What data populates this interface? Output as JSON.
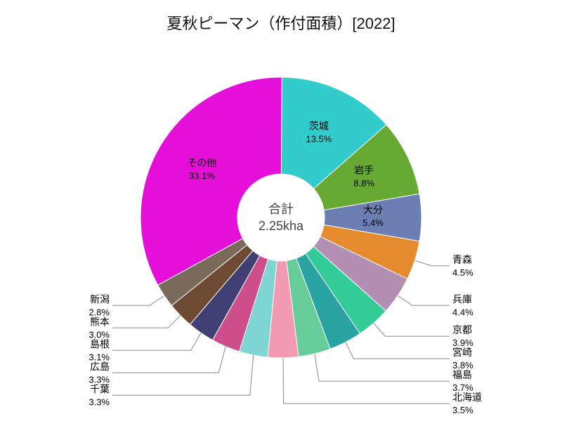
{
  "chart": {
    "type": "pie",
    "title": "夏秋ピーマン（作付面積）[2022]",
    "title_fontsize": 22,
    "center_label": "合計",
    "center_value": "2.25kha",
    "background_color": "#ffffff",
    "inner_radius": 62,
    "outer_radius": 200,
    "slices": [
      {
        "name": "茨城",
        "pct": 13.5,
        "color": "#33cccc",
        "label_inside": true
      },
      {
        "name": "岩手",
        "pct": 8.8,
        "color": "#66aa33",
        "label_inside": true
      },
      {
        "name": "大分",
        "pct": 5.4,
        "color": "#6b7fb3",
        "label_inside": true
      },
      {
        "name": "青森",
        "pct": 4.5,
        "color": "#e68a2e",
        "label_inside": false
      },
      {
        "name": "兵庫",
        "pct": 4.4,
        "color": "#b38fb3",
        "label_inside": false
      },
      {
        "name": "京都",
        "pct": 3.9,
        "color": "#33cc99",
        "label_inside": false
      },
      {
        "name": "宮崎",
        "pct": 3.8,
        "color": "#2aa3a3",
        "label_inside": false
      },
      {
        "name": "福島",
        "pct": 3.7,
        "color": "#66cc99",
        "label_inside": false
      },
      {
        "name": "北海道",
        "pct": 3.5,
        "color": "#f299b3",
        "label_inside": false
      },
      {
        "name": "千葉",
        "pct": 3.3,
        "color": "#7fd4d4",
        "label_inside": false
      },
      {
        "name": "広島",
        "pct": 3.3,
        "color": "#cc4f8c",
        "label_inside": false
      },
      {
        "name": "島根",
        "pct": 3.1,
        "color": "#3f3f73",
        "label_inside": false
      },
      {
        "name": "熊本",
        "pct": 3.0,
        "color": "#6e4a33",
        "label_inside": false
      },
      {
        "name": "新潟",
        "pct": 2.8,
        "color": "#7a6a5a",
        "label_inside": false
      },
      {
        "name": "その他",
        "pct": 33.1,
        "color": "#e60ed9",
        "label_inside": true
      }
    ],
    "leader_color": "#888888"
  }
}
